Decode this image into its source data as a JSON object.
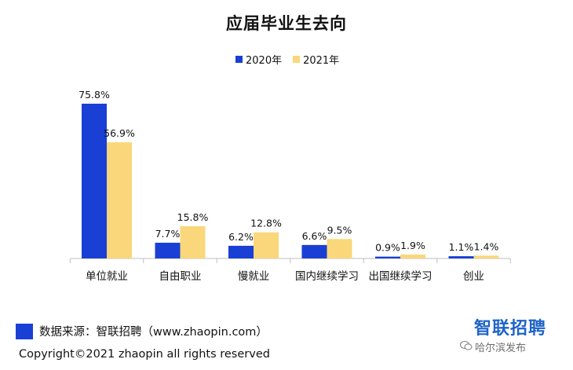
{
  "chart_data": {
    "type": "bar",
    "title": "应届毕业生去向",
    "categories": [
      "单位就业",
      "自由职业",
      "慢就业",
      "国内继续学习",
      "出国继续学习",
      "创业"
    ],
    "series": [
      {
        "name": "2020年",
        "values": [
          75.8,
          7.7,
          6.2,
          6.6,
          0.9,
          1.1
        ],
        "labels": [
          "75.8%",
          "7.7%",
          "6.2%",
          "6.6%",
          "0.9%",
          "1.1%"
        ],
        "color": "#1a3fd4"
      },
      {
        "name": "2021年",
        "values": [
          56.9,
          15.8,
          12.8,
          9.5,
          1.9,
          1.4
        ],
        "labels": [
          "56.9%",
          "15.8%",
          "12.8%",
          "9.5%",
          "1.9%",
          "1.4%"
        ],
        "color": "#f9d77a"
      }
    ],
    "ylim": [
      0,
      75.8
    ],
    "grid": false,
    "legend_position": "top-center"
  },
  "footer": {
    "source": "数据来源：智联招聘（www.zhaopin.com）",
    "copyright": "Copyright©2021 zhaopin all rights reserved",
    "brand": "智联招聘",
    "watermark": "哈尔滨发布",
    "source_color": "#1a3fd4",
    "brand_color": "#1e63c8"
  }
}
